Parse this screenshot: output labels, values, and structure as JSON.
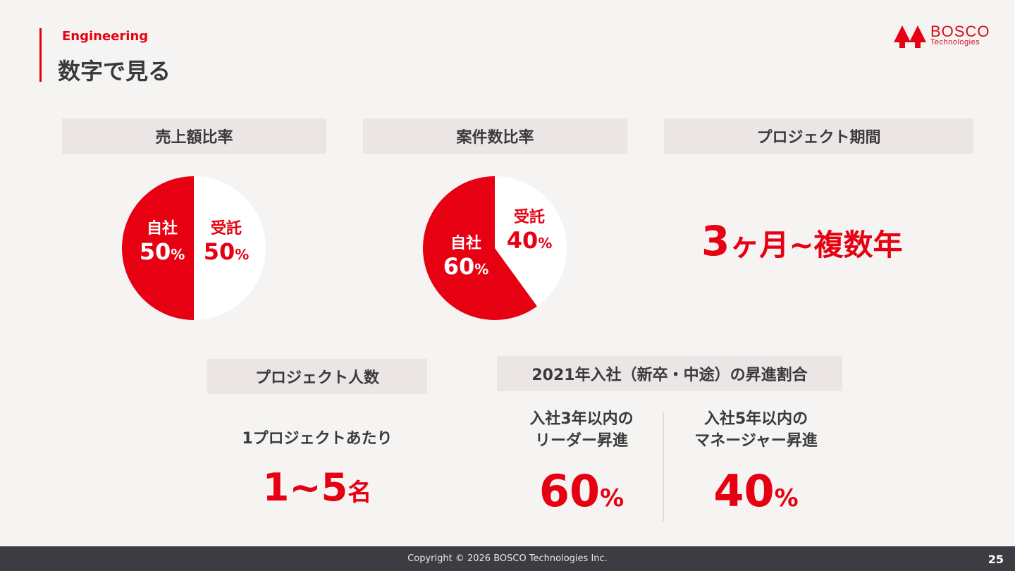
{
  "header": {
    "section": "Engineering",
    "title": "数字で見る",
    "logo_text": "BOSCO",
    "logo_sub": "Technologies"
  },
  "colors": {
    "accent": "#e60012",
    "panel": "#ebe6e5",
    "footer": "#3c3c42"
  },
  "cards": {
    "sales_ratio": {
      "title": "売上額比率",
      "in_house_label": "自社",
      "in_house_value": "50",
      "contract_label": "受託",
      "contract_value": "50",
      "unit": "%"
    },
    "project_ratio": {
      "title": "案件数比率",
      "in_house_label": "自社",
      "in_house_value": "60",
      "contract_label": "受託",
      "contract_value": "40",
      "unit": "%"
    },
    "period": {
      "title": "プロジェクト期間",
      "value_num": "3",
      "value_rest": "ヶ月~複数年"
    },
    "members": {
      "title": "プロジェクト人数",
      "sub": "1プロジェクトあたり",
      "value": "1~5",
      "unit": "名"
    },
    "promotion": {
      "title": "2021年入社（新卒・中途）の昇進割合",
      "left_line1": "入社3年以内の",
      "left_line2": "リーダー昇進",
      "left_value": "60",
      "right_line1": "入社5年以内の",
      "right_line2": "マネージャー昇進",
      "right_value": "40",
      "unit": "%"
    }
  },
  "chart_data": [
    {
      "type": "pie",
      "categories": [
        "自社",
        "受託"
      ],
      "values": [
        50,
        50
      ]
    },
    {
      "type": "pie",
      "categories": [
        "自社",
        "受託"
      ],
      "values": [
        60,
        40
      ]
    }
  ],
  "footer": {
    "copyright": "Copyright © 2026 BOSCO Technologies Inc.",
    "page": "25"
  }
}
